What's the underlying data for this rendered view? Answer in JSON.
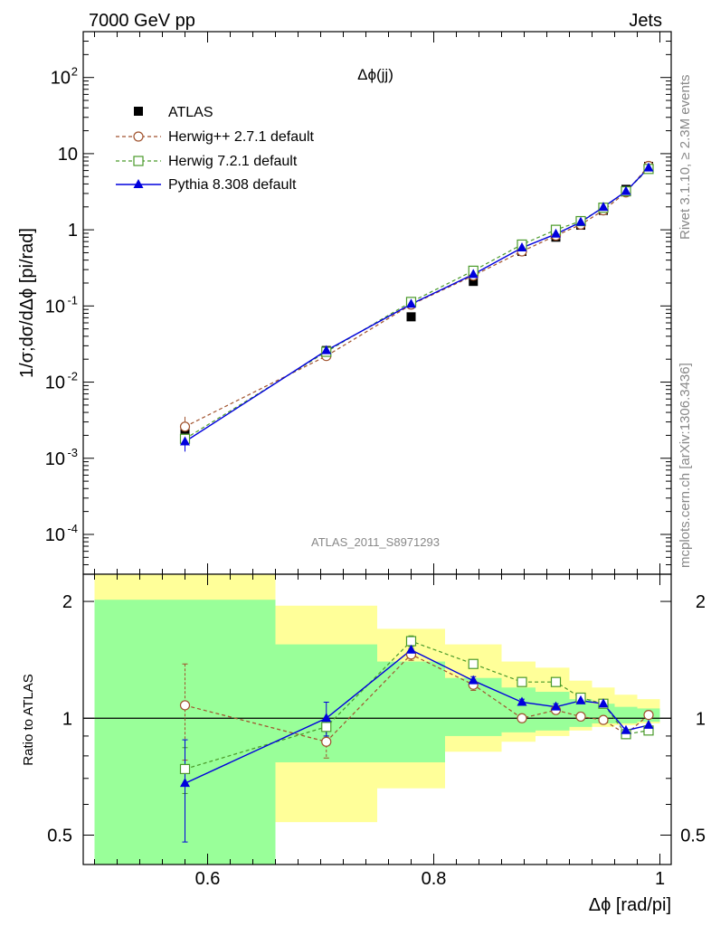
{
  "header": {
    "left": "7000 GeV pp",
    "right": "Jets"
  },
  "side_labels": {
    "rivet": "Rivet 3.1.10, ≥ 2.3M events",
    "mcplots": "mcplots.cern.ch [arXiv:1306.3436]"
  },
  "colors": {
    "atlas": "#000000",
    "herwigpp": "#a0522d",
    "herwig7": "#4a9a2a",
    "pythia": "#0000dd",
    "band_yellow": "#ffff99",
    "band_green": "#99ff99"
  },
  "chart_data": [
    {
      "type": "scatter",
      "panel": "main",
      "title": "Δϕ(jj)",
      "xlabel": "Δϕ [rad/pi]",
      "ylabel": "1/σ;dσ/dΔϕ [pi/rad]",
      "yscale": "log",
      "xlim": [
        0.49,
        1.01
      ],
      "ylim": [
        3e-05,
        400
      ],
      "y_ticks": [
        {
          "label": "10",
          "exp": "-4",
          "value": 0.0001
        },
        {
          "label": "10",
          "exp": "-3",
          "value": 0.001
        },
        {
          "label": "10",
          "exp": "-2",
          "value": 0.01
        },
        {
          "label": "10",
          "exp": "-1",
          "value": 0.1
        },
        {
          "label": "1",
          "exp": "",
          "value": 1
        },
        {
          "label": "10",
          "exp": "",
          "value": 10
        },
        {
          "label": "10",
          "exp": "2",
          "value": 100
        }
      ],
      "watermark": "ATLAS_2011_S8971293",
      "x": [
        0.58,
        0.705,
        0.78,
        0.835,
        0.878,
        0.908,
        0.93,
        0.95,
        0.97,
        0.99
      ],
      "series": [
        {
          "name": "ATLAS",
          "style": "data",
          "color": "#000000",
          "values": [
            0.0024,
            0.026,
            0.072,
            0.21,
            0.52,
            0.8,
            1.15,
            1.8,
            3.4,
            6.8
          ]
        },
        {
          "name": "Herwig++ 2.7.1 default",
          "style": "circle-dashed",
          "color": "#a0522d",
          "values": [
            0.0026,
            0.022,
            0.104,
            0.25,
            0.52,
            0.84,
            1.17,
            1.8,
            3.1,
            6.9
          ]
        },
        {
          "name": "Herwig 7.2.1 default",
          "style": "square-dashed",
          "color": "#4a9a2a",
          "values": [
            0.0018,
            0.025,
            0.113,
            0.29,
            0.64,
            1.0,
            1.3,
            1.95,
            3.2,
            6.3
          ]
        },
        {
          "name": "Pythia 8.308 default",
          "style": "triangle-solid",
          "color": "#0000dd",
          "values": [
            0.00165,
            0.026,
            0.106,
            0.26,
            0.58,
            0.88,
            1.26,
            1.98,
            3.2,
            6.5
          ]
        }
      ]
    },
    {
      "type": "line",
      "panel": "ratio",
      "xlabel": "Δϕ [rad/pi]",
      "ylabel": "Ratio to ATLAS",
      "yscale": "log",
      "xlim": [
        0.49,
        1.01
      ],
      "ylim": [
        0.42,
        2.35
      ],
      "x_ticks": [
        "0.6",
        "0.8",
        "1"
      ],
      "x_tick_values": [
        0.6,
        0.8,
        1.0
      ],
      "y_ticks": [
        "0.5",
        "1",
        "2"
      ],
      "y_tick_values": [
        0.5,
        1,
        2
      ],
      "bin_edges": [
        0.5,
        0.66,
        0.75,
        0.81,
        0.86,
        0.89,
        0.92,
        0.94,
        0.96,
        0.98,
        1.0
      ],
      "band_outer": {
        "low": [
          0.2,
          0.54,
          0.66,
          0.82,
          0.87,
          0.9,
          0.93,
          0.95,
          0.96,
          0.97
        ],
        "high": [
          2.6,
          1.95,
          1.7,
          1.55,
          1.4,
          1.35,
          1.25,
          1.2,
          1.15,
          1.12
        ]
      },
      "band_inner": {
        "low": [
          0.2,
          0.77,
          0.77,
          0.9,
          0.92,
          0.93,
          0.95,
          0.97,
          0.97,
          0.98
        ],
        "high": [
          2.02,
          1.55,
          1.4,
          1.27,
          1.2,
          1.17,
          1.12,
          1.09,
          1.07,
          1.06
        ]
      },
      "x": [
        0.58,
        0.705,
        0.78,
        0.835,
        0.878,
        0.908,
        0.93,
        0.95,
        0.97,
        0.99
      ],
      "series": [
        {
          "name": "Herwig++ 2.7.1 default",
          "color": "#a0522d",
          "style": "circle-dashed",
          "values": [
            1.08,
            0.87,
            1.46,
            1.22,
            1.0,
            1.05,
            1.01,
            0.99,
            0.91,
            1.02
          ],
          "err": [
            0.3,
            0.08,
            0.05,
            0.04,
            0.02,
            0.02,
            0.02,
            0.01,
            0.01,
            0.01
          ]
        },
        {
          "name": "Herwig 7.2.1 default",
          "color": "#4a9a2a",
          "style": "square-dashed",
          "values": [
            0.74,
            0.95,
            1.58,
            1.38,
            1.24,
            1.24,
            1.13,
            1.09,
            0.91,
            0.93
          ],
          "err": [
            0.1,
            0.05,
            0.05,
            0.03,
            0.02,
            0.02,
            0.01,
            0.01,
            0.01,
            0.01
          ]
        },
        {
          "name": "Pythia 8.308 default",
          "color": "#0000dd",
          "style": "triangle-solid",
          "values": [
            0.68,
            1.0,
            1.5,
            1.25,
            1.1,
            1.07,
            1.11,
            1.09,
            0.93,
            0.96
          ],
          "err": [
            0.2,
            0.1,
            0.05,
            0.03,
            0.02,
            0.02,
            0.01,
            0.01,
            0.01,
            0.01
          ]
        }
      ]
    }
  ]
}
